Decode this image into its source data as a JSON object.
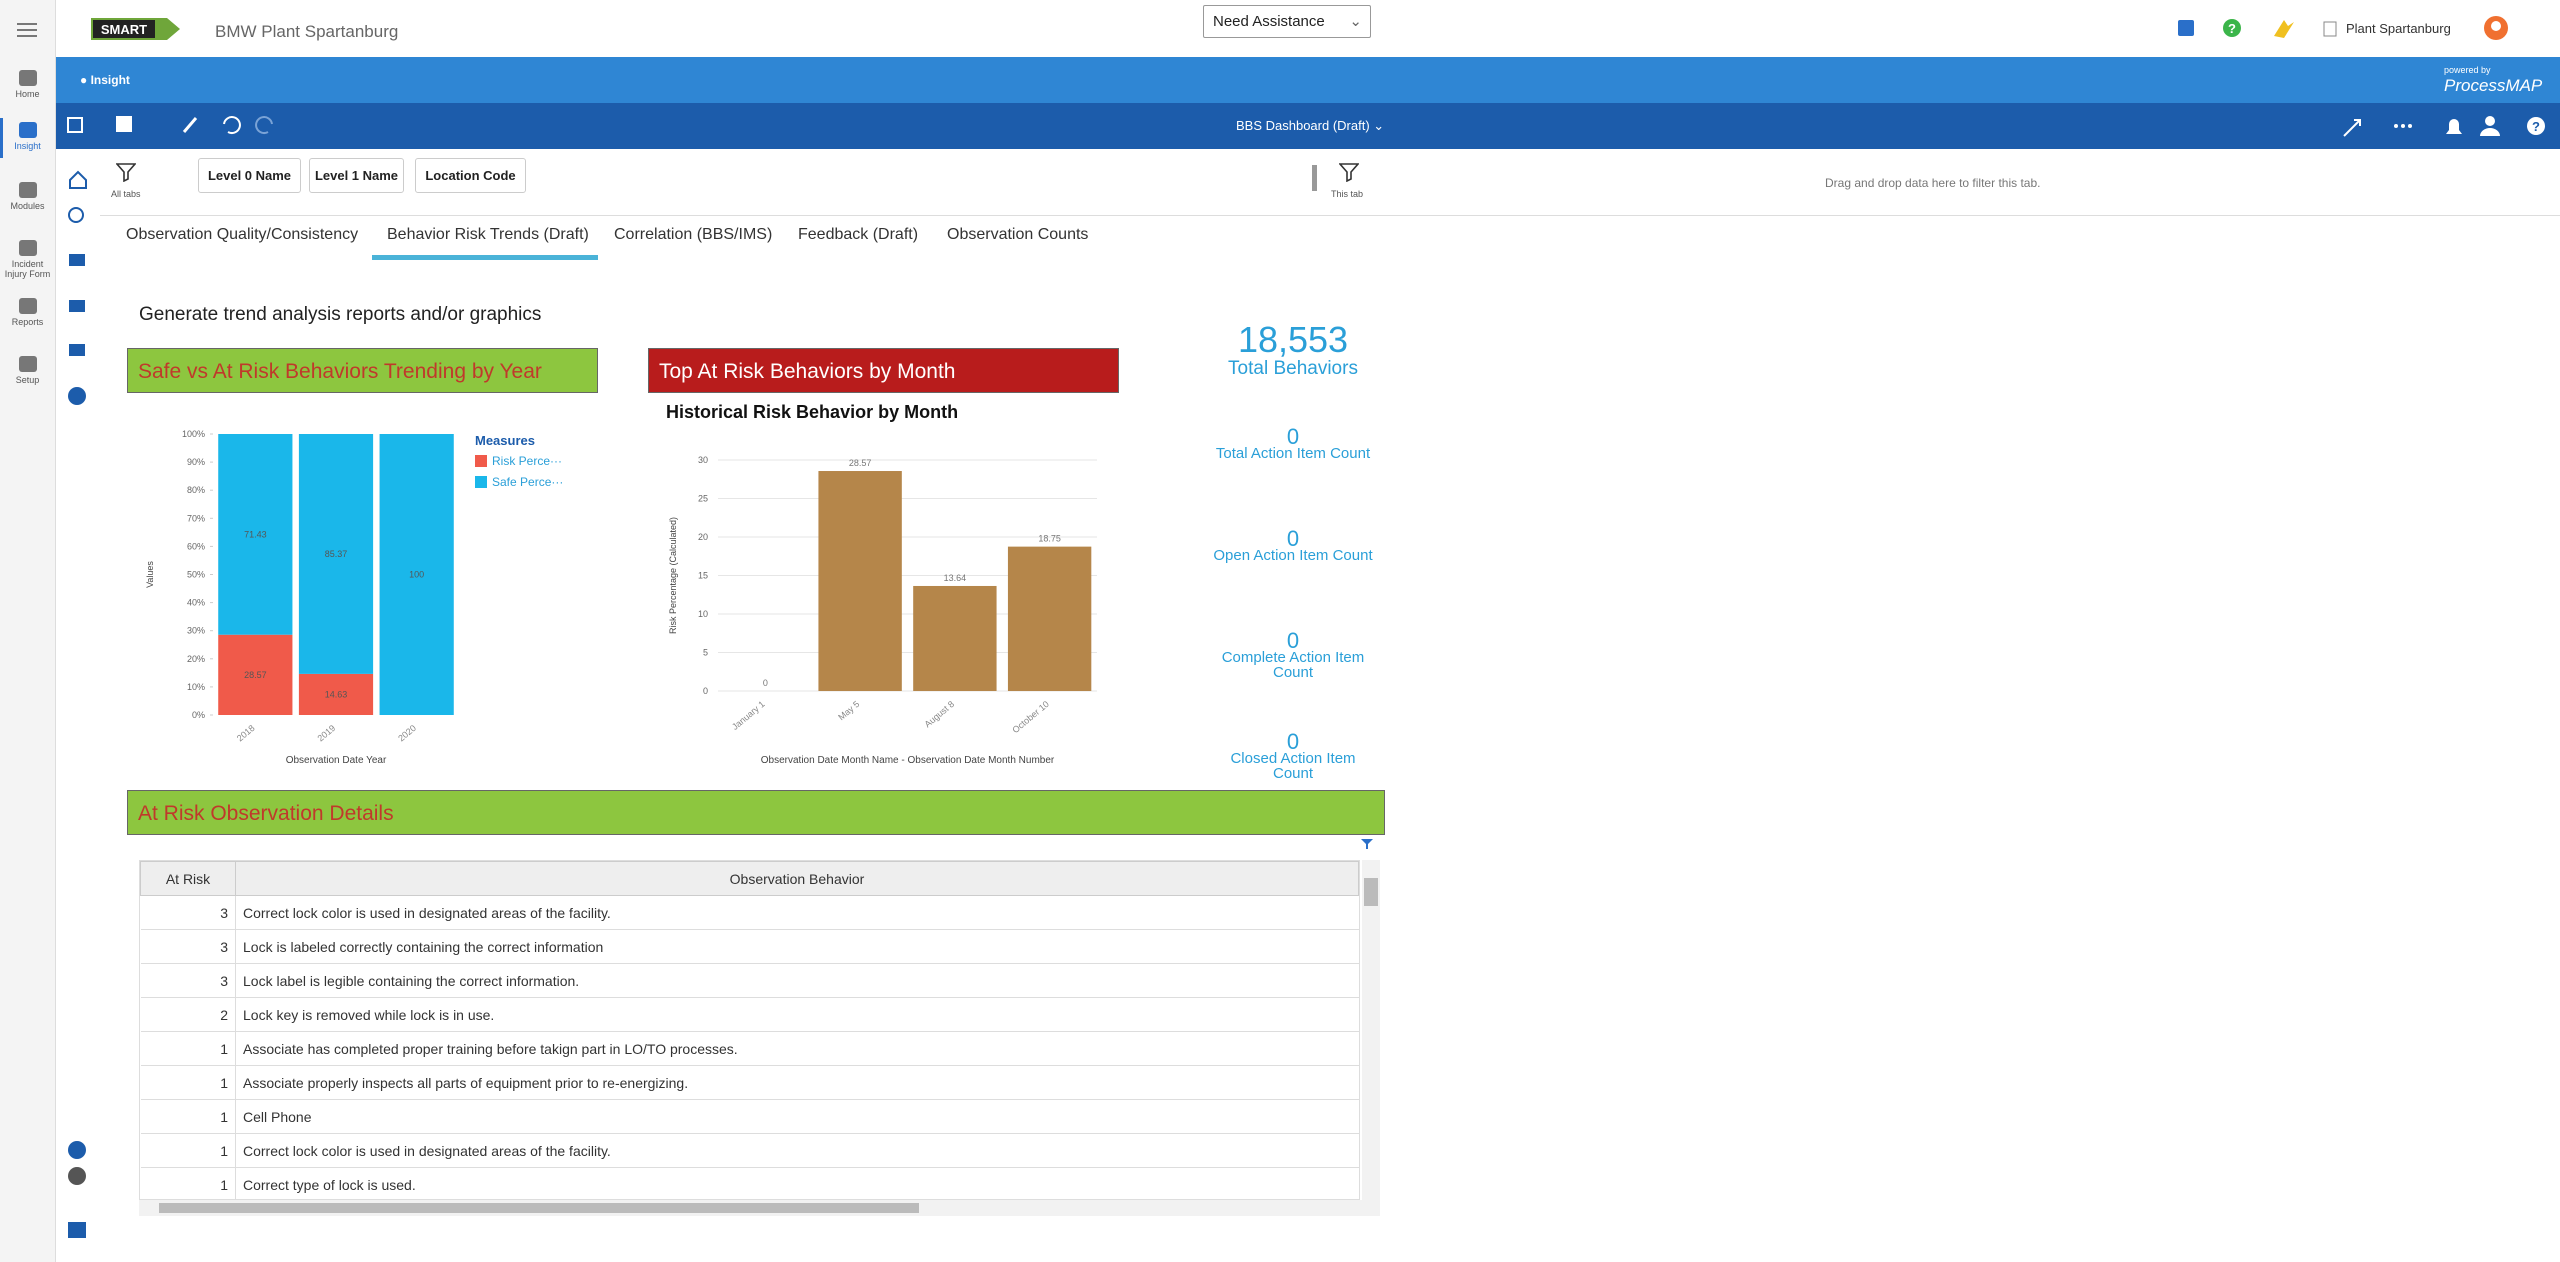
{
  "header": {
    "app_title": "BMW Plant Spartanburg",
    "assistance": "Need Assistance",
    "plant": "Plant Spartanburg",
    "powered_by": "powered by",
    "brand": "ProcessMAP"
  },
  "sidebar": [
    "Home",
    "Insight",
    "Modules",
    "Incident Injury Form",
    "Reports",
    "Setup"
  ],
  "breadcrumb": "Insight",
  "toolbar": {
    "dashboard": "BBS Dashboard (Draft)"
  },
  "filters": {
    "all_tabs": "All tabs",
    "chips": [
      "Level 0 Name",
      "Level 1 Name",
      "Location Code"
    ],
    "this_tab": "This tab",
    "drop_hint": "Drag and drop data here to filter this tab."
  },
  "tabs": [
    "Observation Quality/Consistency",
    "Behavior Risk Trends (Draft)",
    "Correlation (BBS/IMS)",
    "Feedback (Draft)",
    "Observation Counts"
  ],
  "active_tab": 1,
  "intro": "Generate trend analysis reports and/or graphics",
  "panels": {
    "trend": "Safe vs At Risk Behaviors Trending by Year",
    "top": "Top At Risk Behaviors by Month",
    "details": "At Risk Observation Details"
  },
  "charts": [
    {
      "type": "stacked_bar",
      "y_label": "Values",
      "x_label": "Observation Date Year",
      "categories": [
        "2018",
        "2019",
        "2020"
      ],
      "series": [
        {
          "name": "Risk Perce···",
          "color": "#f05a4a",
          "values": [
            28.57,
            14.63,
            0
          ]
        },
        {
          "name": "Safe Perce···",
          "color": "#1ab7ea",
          "values": [
            71.43,
            85.37,
            100
          ]
        }
      ],
      "legend_title": "Measures",
      "grid": false,
      "ylim": [
        0,
        100
      ],
      "yticks": [
        {
          "value": 0,
          "label": "0%"
        },
        {
          "value": 10,
          "label": "10%"
        },
        {
          "value": 20,
          "label": "20%"
        },
        {
          "value": 30,
          "label": "30%"
        },
        {
          "value": 40,
          "label": "40%"
        },
        {
          "value": 50,
          "label": "50%"
        },
        {
          "value": 60,
          "label": "60%"
        },
        {
          "value": 70,
          "label": "70%"
        },
        {
          "value": 80,
          "label": "80%"
        },
        {
          "value": 90,
          "label": "90%"
        },
        {
          "value": 100,
          "label": "100%"
        }
      ]
    },
    {
      "type": "bar",
      "title": "Historical Risk Behavior by Month",
      "y_label": "Risk Percentage (Calculated)",
      "x_label": "Observation Date Month Name - Observation Date Month Number",
      "categories": [
        "January 1",
        "May 5",
        "August 8",
        "October 10"
      ],
      "values": [
        0,
        28.57,
        13.64,
        18.75
      ],
      "color": "#b5864a",
      "grid": true,
      "ylim": [
        0,
        30
      ],
      "yticks": [
        0,
        5,
        10,
        15,
        20,
        25,
        30
      ]
    }
  ],
  "kpis": [
    {
      "value": {
        "value": 18553,
        "label": "18,553"
      },
      "label": "Total Behaviors"
    },
    {
      "value": 0,
      "label": "Total Action Item Count"
    },
    {
      "value": 0,
      "label": "Open Action Item Count"
    },
    {
      "value": 0,
      "label": "Complete Action Item Count"
    },
    {
      "value": 0,
      "label": "Closed Action Item Count"
    }
  ],
  "table": {
    "columns": [
      "At Risk",
      "Observation Behavior"
    ],
    "rows": [
      [
        3,
        "Correct lock color is used in designated areas of the facility."
      ],
      [
        3,
        "Lock is labeled correctly containing the correct information"
      ],
      [
        3,
        "Lock label is legible containing the correct information."
      ],
      [
        2,
        "Lock key is removed while lock is in use."
      ],
      [
        1,
        "Associate has completed proper training before takign part in LO/TO processes."
      ],
      [
        1,
        "Associate properly inspects all parts of equipment prior to re-energizing."
      ],
      [
        1,
        "Cell Phone"
      ],
      [
        1,
        "Correct lock color is used in designated areas of the facility."
      ],
      [
        1,
        "Correct type of lock is used."
      ]
    ]
  }
}
